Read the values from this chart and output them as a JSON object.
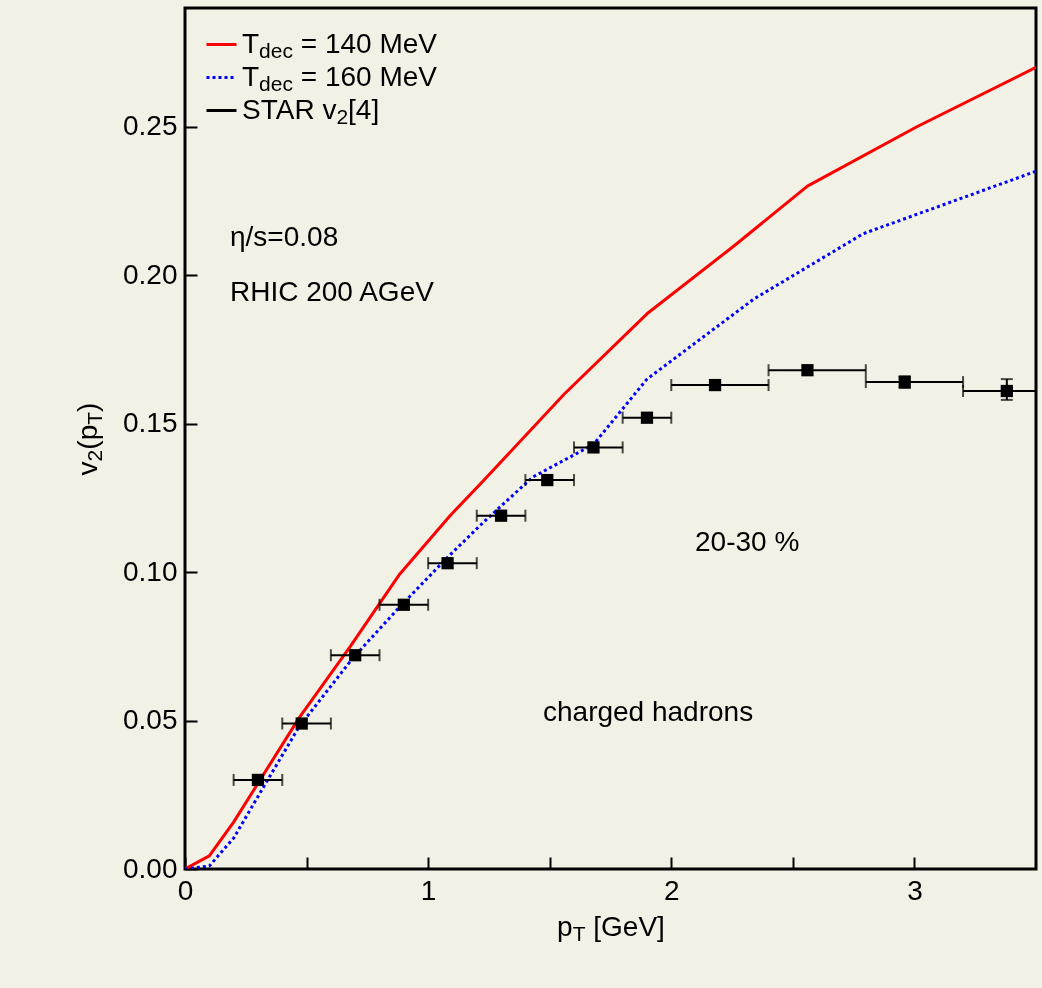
{
  "chart_data": {
    "type": "line",
    "xlabel": "p$_{T}$ [GeV]",
    "ylabel": "v$_{2}$(p$_{T}$)",
    "xlim": [
      0,
      3.5
    ],
    "ylim": [
      0,
      0.29
    ],
    "xticks": [
      0,
      {
        "value": 0.5,
        "label": null
      },
      1,
      {
        "value": 1.5,
        "label": null
      },
      2,
      {
        "value": 2.5,
        "label": null
      },
      3
    ],
    "yticks": [
      {
        "value": 0,
        "label": "0.00"
      },
      {
        "value": 0.05,
        "label": "0.05"
      },
      {
        "value": 0.1,
        "label": "0.10"
      },
      {
        "value": 0.15,
        "label": "0.15"
      },
      {
        "value": 0.2,
        "label": "0.20"
      },
      {
        "value": 0.25,
        "label": "0.25"
      }
    ],
    "grid": false,
    "legend": "top left",
    "annotations": [
      "η/s=0.08",
      "RHIC 200 AGeV",
      "20-30 %",
      "charged hadrons"
    ],
    "series": [
      {
        "name": "T$_{dec}$ = 140 MeV",
        "type": "line",
        "color": "#ff0000",
        "line_style": "solid",
        "x": [
          0,
          0.1,
          0.2,
          0.47,
          0.68,
          0.88,
          1.09,
          1.23,
          1.56,
          1.9,
          2.26,
          2.56,
          3.01,
          3.5
        ],
        "values": [
          0,
          0.0044,
          0.0158,
          0.051,
          0.075,
          0.099,
          0.119,
          0.131,
          0.16,
          0.187,
          0.21,
          0.23,
          0.25,
          0.27
        ]
      },
      {
        "name": "T$_{dec}$ = 160 MeV",
        "type": "line",
        "color": "#0000ff",
        "line_style": "dotted",
        "x": [
          0,
          0.1,
          0.2,
          0.34,
          0.47,
          0.69,
          0.88,
          1.08,
          1.23,
          1.43,
          1.68,
          1.9,
          2.34,
          2.79,
          3.5
        ],
        "values": [
          0,
          0.001,
          0.0104,
          0.03,
          0.048,
          0.071,
          0.088,
          0.105,
          0.117,
          0.132,
          0.143,
          0.165,
          0.192,
          0.214,
          0.235
        ]
      },
      {
        "name": "STAR v$_{2}$[4]",
        "type": "scatter",
        "color": "#000000",
        "marker": "square",
        "x": [
          0.3,
          0.48,
          0.7,
          0.9,
          1.08,
          1.3,
          1.49,
          1.68,
          1.9,
          2.18,
          2.56,
          2.96,
          3.38
        ],
        "values": [
          0.03,
          0.049,
          0.072,
          0.089,
          0.103,
          0.119,
          0.131,
          0.142,
          0.152,
          0.163,
          0.168,
          0.164,
          0.161
        ],
        "errors": [
          null,
          null,
          null,
          null,
          null,
          null,
          null,
          null,
          null,
          null,
          null,
          [
            0.162,
            0.166
          ],
          [
            0.158,
            0.165
          ]
        ],
        "xerrors": [
          [
            0.2,
            0.4
          ],
          [
            0.4,
            0.6
          ],
          [
            0.6,
            0.8
          ],
          [
            0.8,
            1.0
          ],
          [
            1.0,
            1.2
          ],
          [
            1.2,
            1.4
          ],
          [
            1.4,
            1.6
          ],
          [
            1.6,
            1.8
          ],
          [
            1.8,
            2.0
          ],
          [
            2.0,
            2.4
          ],
          [
            2.4,
            2.8
          ],
          [
            2.8,
            3.2
          ],
          [
            3.2,
            3.5
          ]
        ]
      }
    ]
  }
}
